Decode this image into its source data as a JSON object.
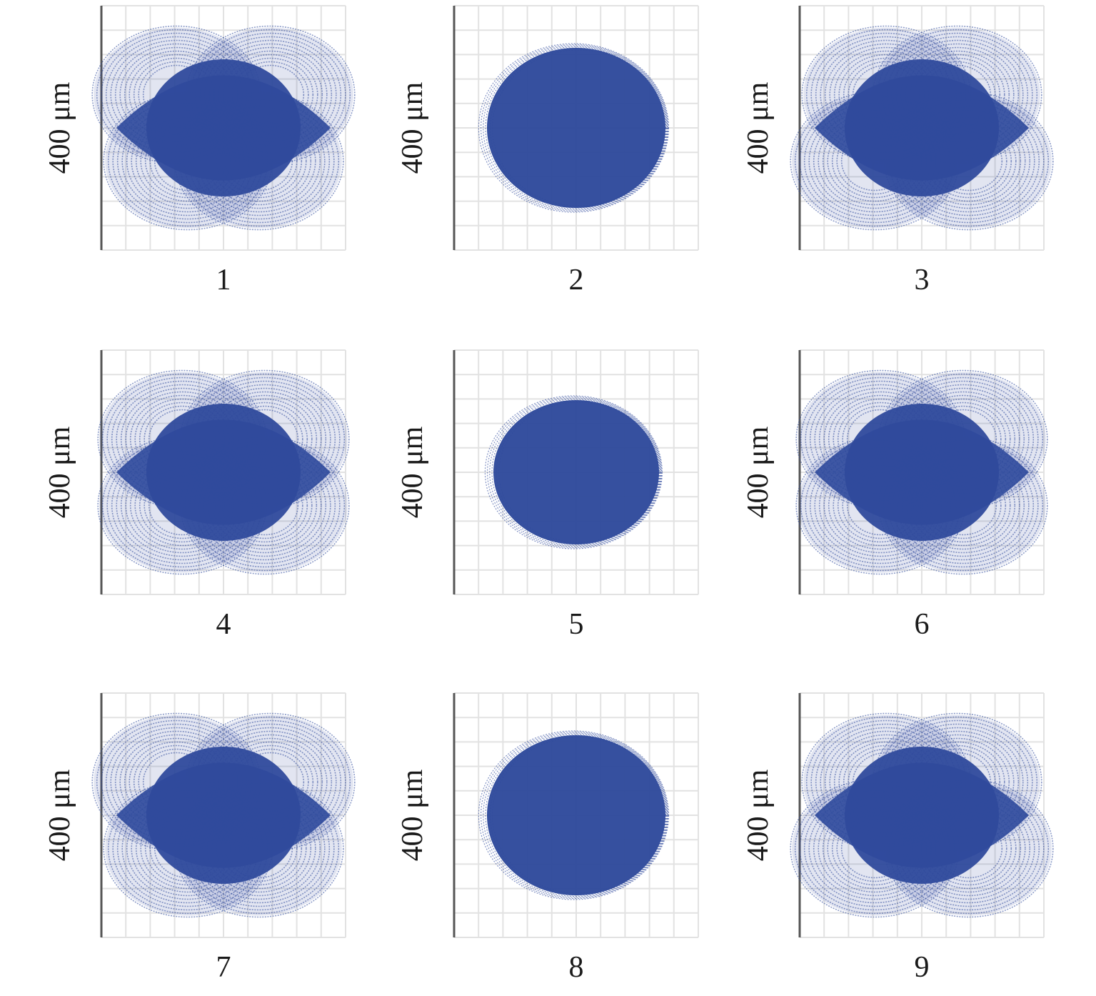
{
  "figure": {
    "scale_label": "400 μm",
    "colors": {
      "spot": "#2f4a9c",
      "grid": "#e2e2e2",
      "axis": "#555555",
      "text": "#1a1a1a"
    },
    "panels": [
      {
        "id": "1",
        "label": "1",
        "pattern": "four-lobe",
        "tilt": "left"
      },
      {
        "id": "2",
        "label": "2",
        "pattern": "ellipse"
      },
      {
        "id": "3",
        "label": "3",
        "pattern": "four-lobe",
        "tilt": "right"
      },
      {
        "id": "4",
        "label": "4",
        "pattern": "four-lobe",
        "tilt": "none"
      },
      {
        "id": "5",
        "label": "5",
        "pattern": "ellipse"
      },
      {
        "id": "6",
        "label": "6",
        "pattern": "four-lobe",
        "tilt": "none"
      },
      {
        "id": "7",
        "label": "7",
        "pattern": "four-lobe",
        "tilt": "left"
      },
      {
        "id": "8",
        "label": "8",
        "pattern": "ellipse"
      },
      {
        "id": "9",
        "label": "9",
        "pattern": "four-lobe",
        "tilt": "right"
      }
    ]
  }
}
